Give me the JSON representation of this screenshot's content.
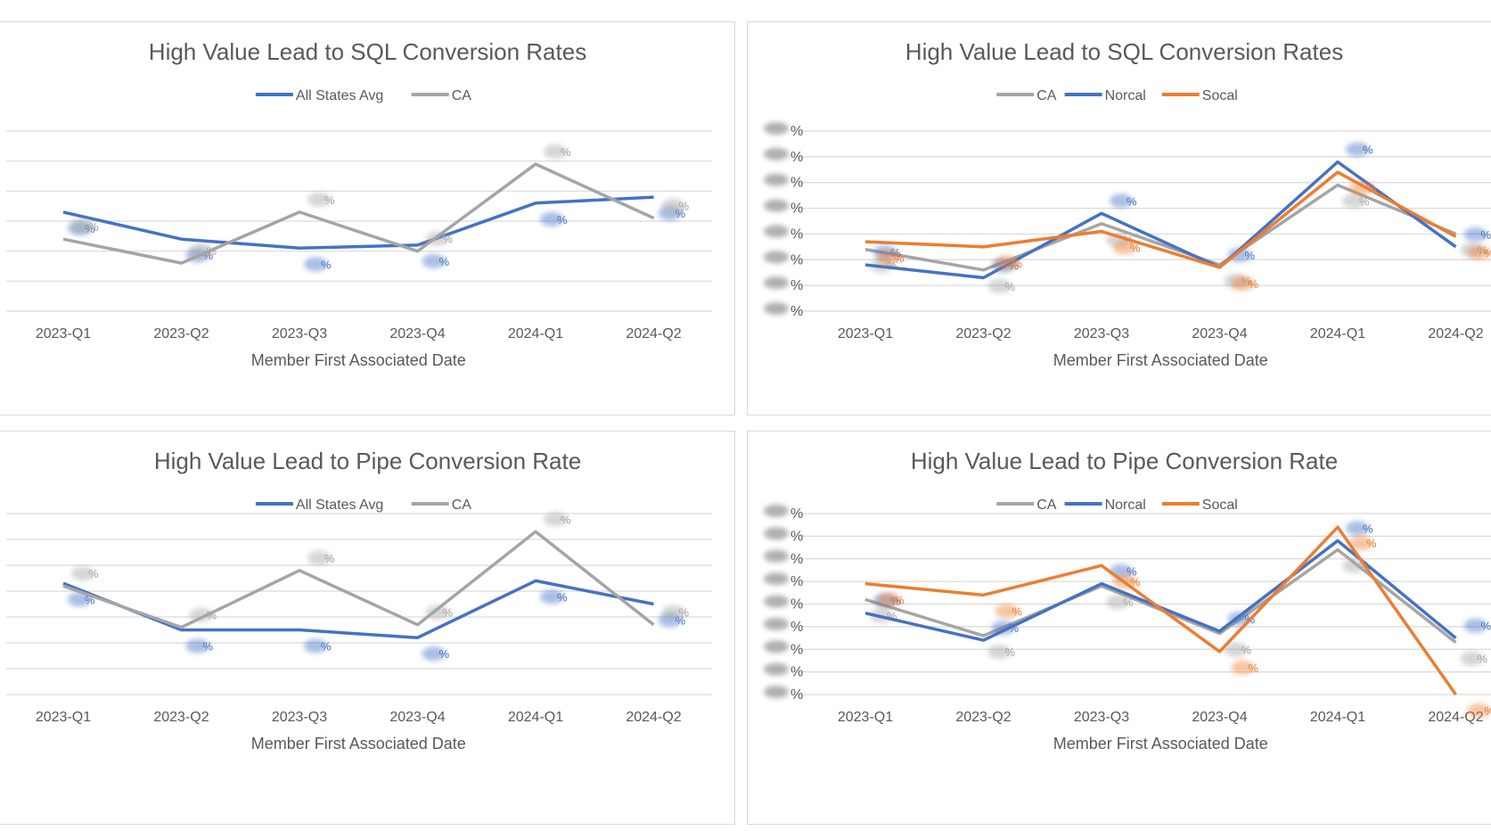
{
  "colors": {
    "all_states_avg": "#4472c4",
    "ca": "#a5a5a5",
    "norcal": "#4472c4",
    "socal": "#ed7d31",
    "grid": "#d9d9d9"
  },
  "chart_data": [
    {
      "type": "line",
      "title": "High Value Lead to SQL Conversion Rates",
      "xlabel": "Member First Associated Date",
      "ylabel": "",
      "categories": [
        "2023-Q1",
        "2023-Q2",
        "2023-Q3",
        "2023-Q4",
        "2024-Q1",
        "2024-Q2"
      ],
      "legend_position": "top",
      "grid": true,
      "ylim": [
        0,
        6
      ],
      "y_tick_labels_visible": false,
      "series": [
        {
          "name": "All States Avg",
          "color": "#4472c4",
          "values": [
            3.3,
            2.4,
            2.1,
            2.2,
            3.6,
            3.8
          ]
        },
        {
          "name": "CA",
          "color": "#a5a5a5",
          "values": [
            2.4,
            1.6,
            3.3,
            2.0,
            4.9,
            3.1
          ]
        }
      ]
    },
    {
      "type": "line",
      "title": "High Value Lead to SQL Conversion Rates",
      "xlabel": "Member First Associated Date",
      "ylabel": "",
      "categories": [
        "2023-Q1",
        "2023-Q2",
        "2023-Q3",
        "2023-Q4",
        "2024-Q1",
        "2024-Q2"
      ],
      "legend_position": "top",
      "grid": true,
      "ylim": [
        0,
        7
      ],
      "y_tick_labels_visible": false,
      "series": [
        {
          "name": "CA",
          "color": "#a5a5a5",
          "values": [
            2.4,
            1.6,
            3.4,
            1.8,
            4.9,
            3.0
          ]
        },
        {
          "name": "Norcal",
          "color": "#4472c4",
          "values": [
            1.8,
            1.3,
            3.8,
            1.7,
            5.8,
            2.5
          ]
        },
        {
          "name": "Socal",
          "color": "#ed7d31",
          "values": [
            2.7,
            2.5,
            3.1,
            1.7,
            5.4,
            2.9
          ]
        }
      ]
    },
    {
      "type": "line",
      "title": "High Value Lead to Pipe Conversion Rate",
      "xlabel": "Member First Associated Date",
      "ylabel": "",
      "categories": [
        "2023-Q1",
        "2023-Q2",
        "2023-Q3",
        "2023-Q4",
        "2024-Q1",
        "2024-Q2"
      ],
      "legend_position": "top",
      "grid": true,
      "ylim": [
        0,
        7
      ],
      "y_tick_labels_visible": false,
      "series": [
        {
          "name": "All States Avg",
          "color": "#4472c4",
          "values": [
            4.3,
            2.5,
            2.5,
            2.2,
            4.4,
            3.5
          ]
        },
        {
          "name": "CA",
          "color": "#a5a5a5",
          "values": [
            4.2,
            2.6,
            4.8,
            2.7,
            6.3,
            2.7
          ]
        }
      ]
    },
    {
      "type": "line",
      "title": "High Value Lead to Pipe Conversion Rate",
      "xlabel": "Member First Associated Date",
      "ylabel": "",
      "categories": [
        "2023-Q1",
        "2023-Q2",
        "2023-Q3",
        "2023-Q4",
        "2024-Q1",
        "2024-Q2"
      ],
      "legend_position": "top",
      "grid": true,
      "ylim": [
        0,
        8
      ],
      "y_tick_labels_visible": false,
      "series": [
        {
          "name": "CA",
          "color": "#a5a5a5",
          "values": [
            4.2,
            2.6,
            4.8,
            2.7,
            6.4,
            2.3
          ]
        },
        {
          "name": "Norcal",
          "color": "#4472c4",
          "values": [
            3.6,
            2.4,
            4.9,
            2.8,
            6.8,
            2.5
          ]
        },
        {
          "name": "Socal",
          "color": "#ed7d31",
          "values": [
            4.9,
            4.4,
            5.7,
            1.9,
            7.4,
            0.0
          ]
        }
      ]
    }
  ]
}
